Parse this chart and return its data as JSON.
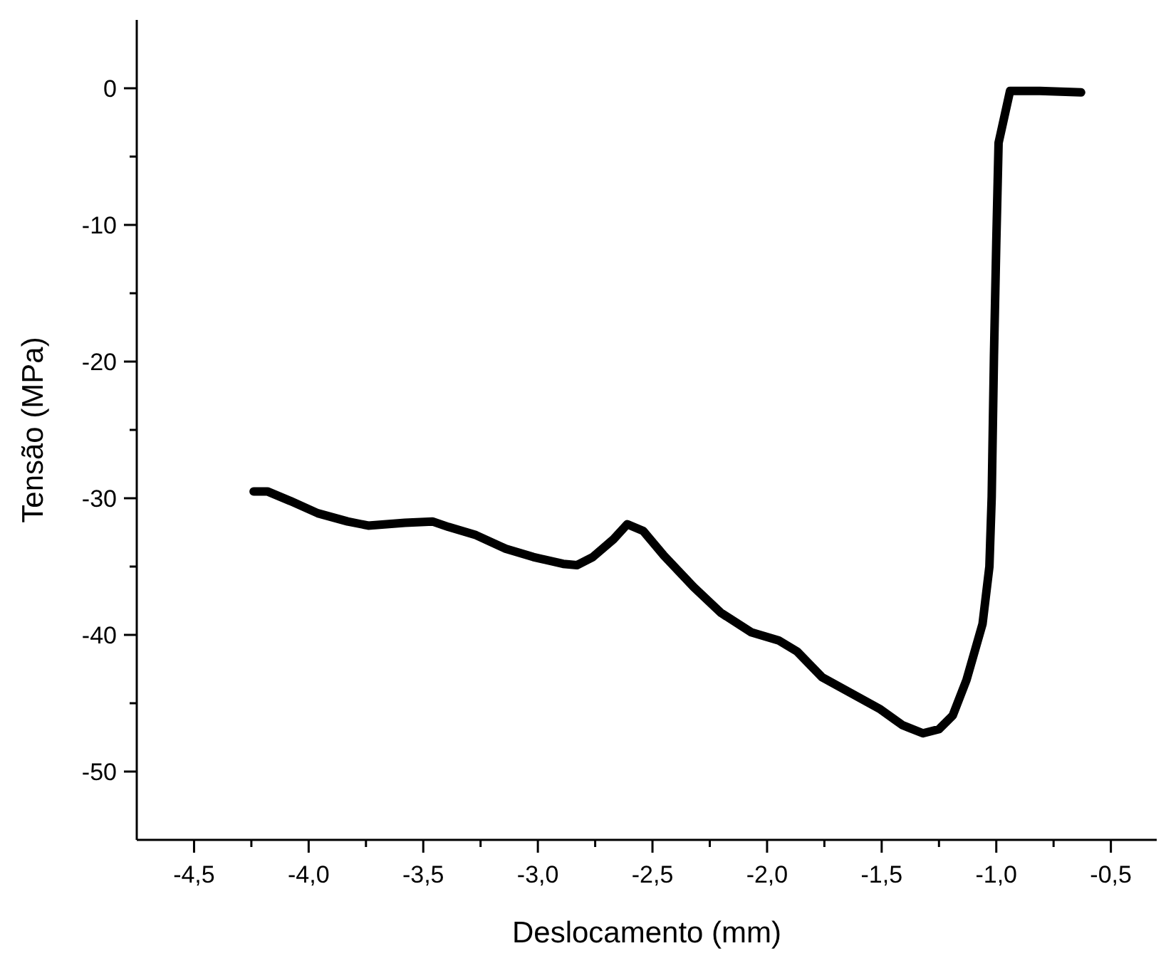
{
  "chart_data": {
    "type": "line",
    "xlabel": "Deslocamento (mm)",
    "ylabel": "Tensão (MPa)",
    "xlim": [
      -4.75,
      -0.3
    ],
    "ylim": [
      -55,
      5
    ],
    "xticks": [
      {
        "value": -4.5,
        "label": "-4,5"
      },
      {
        "value": -4.25,
        "label": null
      },
      {
        "value": -4.0,
        "label": "-4,0"
      },
      {
        "value": -3.75,
        "label": null
      },
      {
        "value": -3.5,
        "label": "-3,5"
      },
      {
        "value": -3.25,
        "label": null
      },
      {
        "value": -3.0,
        "label": "-3,0"
      },
      {
        "value": -2.75,
        "label": null
      },
      {
        "value": -2.5,
        "label": "-2,5"
      },
      {
        "value": -2.25,
        "label": null
      },
      {
        "value": -2.0,
        "label": "-2,0"
      },
      {
        "value": -1.75,
        "label": null
      },
      {
        "value": -1.5,
        "label": "-1,5"
      },
      {
        "value": -1.25,
        "label": null
      },
      {
        "value": -1.0,
        "label": "-1,0"
      },
      {
        "value": -0.75,
        "label": null
      },
      {
        "value": -0.5,
        "label": "-0,5"
      }
    ],
    "yticks": [
      {
        "value": -50,
        "label": "-50"
      },
      {
        "value": -45,
        "label": null
      },
      {
        "value": -40,
        "label": "-40"
      },
      {
        "value": -35,
        "label": null
      },
      {
        "value": -30,
        "label": "-30"
      },
      {
        "value": -25,
        "label": null
      },
      {
        "value": -20,
        "label": "-20"
      },
      {
        "value": -15,
        "label": null
      },
      {
        "value": -10,
        "label": "-10"
      },
      {
        "value": -5,
        "label": null
      },
      {
        "value": 0,
        "label": "0"
      }
    ],
    "grid": false,
    "marker": "none",
    "line_style": "solid",
    "series": [
      {
        "color": "#000000",
        "x": [
          -4.24,
          -4.18,
          -4.08,
          -3.96,
          -3.83,
          -3.74,
          -3.58,
          -3.46,
          -3.39,
          -3.27,
          -3.14,
          -3.02,
          -2.89,
          -2.83,
          -2.76,
          -2.67,
          -2.61,
          -2.54,
          -2.45,
          -2.32,
          -2.2,
          -2.07,
          -1.95,
          -1.87,
          -1.76,
          -1.63,
          -1.51,
          -1.41,
          -1.32,
          -1.25,
          -1.19,
          -1.13,
          -1.06,
          -1.03,
          -1.02,
          -1.01,
          -1.0,
          -0.99,
          -0.94,
          -0.81,
          -0.63
        ],
        "values": [
          -29.5,
          -29.5,
          -30.2,
          -31.1,
          -31.7,
          -32.0,
          -31.8,
          -31.7,
          -32.1,
          -32.7,
          -33.7,
          -34.3,
          -34.8,
          -34.9,
          -34.3,
          -33.0,
          -31.9,
          -32.4,
          -34.2,
          -36.5,
          -38.4,
          -39.8,
          -40.4,
          -41.2,
          -43.1,
          -44.3,
          -45.4,
          -46.6,
          -47.2,
          -46.9,
          -45.9,
          -43.3,
          -39.2,
          -35.0,
          -29.9,
          -19.5,
          -11.3,
          -4.0,
          -0.2,
          -0.2,
          -0.3
        ]
      }
    ]
  }
}
